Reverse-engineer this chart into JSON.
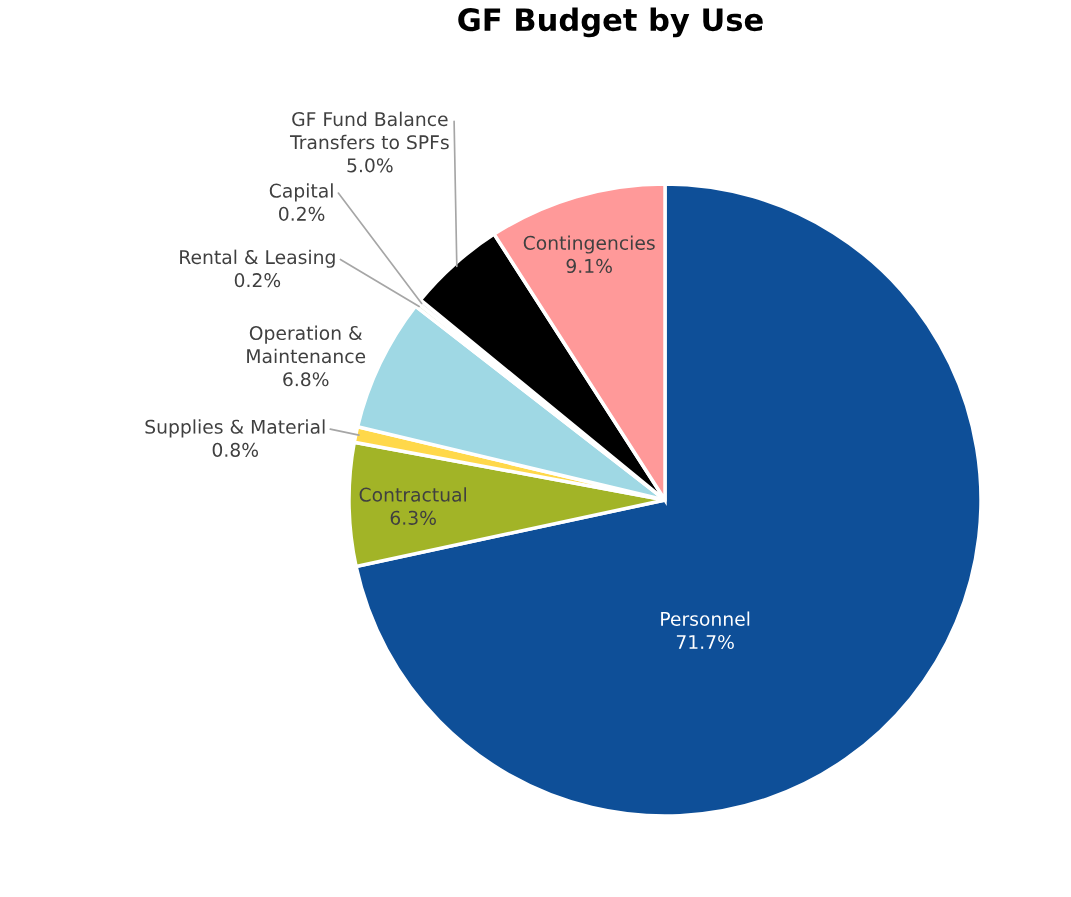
{
  "chart_data": {
    "type": "pie",
    "title": "GF Budget by Use",
    "categories": [
      "Personnel",
      "Contractual",
      "Supplies & Material",
      "Operation &\nMaintenance",
      "Rental & Leasing",
      "Capital",
      "GF Fund Balance\nTransfers to SPFs",
      "Contingencies"
    ],
    "values": [
      71.7,
      6.3,
      0.8,
      6.8,
      0.2,
      0.2,
      5.0,
      9.1
    ],
    "value_labels": [
      "71.7%",
      "6.3%",
      "0.8%",
      "6.8%",
      "0.2%",
      "0.2%",
      "5.0%",
      "9.1%"
    ],
    "colors": [
      "#0e4f98",
      "#a2b427",
      "#ffd84a",
      "#9fd8e4",
      "#d9e8cf",
      "#bfbfbf",
      "#000000",
      "#ff9999"
    ],
    "legend": false
  }
}
